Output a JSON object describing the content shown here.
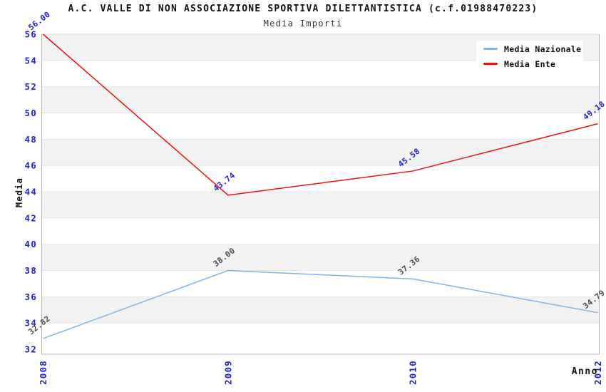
{
  "chart_data": {
    "type": "line",
    "title": "A.C. VALLE DI NON ASSOCIAZIONE SPORTIVA DILETTANTISTICA (c.f.01988470223)",
    "subtitle": "Media Importi",
    "xlabel": "Anno",
    "ylabel": "Media",
    "categories": [
      "2008",
      "2009",
      "2010",
      "2012"
    ],
    "series": [
      {
        "name": "Media Nazionale",
        "color": "#7cb5ec",
        "label_color": "#4d4d4d",
        "values": [
          32.82,
          38.0,
          37.36,
          34.79
        ]
      },
      {
        "name": "Media Ente",
        "color": "#ee1111",
        "label_color": "#2222cc",
        "values": [
          56.0,
          43.74,
          45.58,
          49.18
        ]
      }
    ],
    "ylim": [
      32,
      56
    ],
    "ytick_step": 2,
    "grid": "horizontal-bands",
    "legend_position": "top-right",
    "tick_color": "#2222cc",
    "band_color": "#f2f2f2",
    "gridline_color": "#e6e6e6",
    "axis_line_color": "#b3b3b3",
    "point_label_rotation": -38
  }
}
